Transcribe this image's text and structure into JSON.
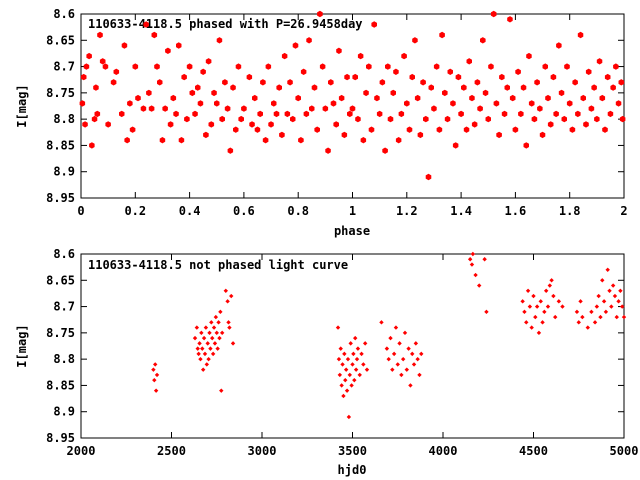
{
  "colors": {
    "points": "#ff0000",
    "axes": "#000000",
    "background": "#ffffff"
  },
  "chart_data": [
    {
      "type": "scatter",
      "title": "110633-4118.5 phased with P=26.9458day",
      "xlabel": "phase",
      "ylabel": "I[mag]",
      "xlim": [
        0,
        2
      ],
      "ylim": [
        8.6,
        8.95
      ],
      "y_reversed": true,
      "grid": false,
      "xticks": [
        "0",
        "0.2",
        "0.4",
        "0.6",
        "0.8",
        "1",
        "1.2",
        "1.4",
        "1.6",
        "1.8",
        "2"
      ],
      "yticks": [
        "8.6",
        "8.65",
        "8.7",
        "8.75",
        "8.8",
        "8.85",
        "8.9",
        "8.95"
      ],
      "marker": "filled-hexagon",
      "points": [
        [
          0.005,
          8.77
        ],
        [
          0.01,
          8.72
        ],
        [
          0.015,
          8.81
        ],
        [
          0.02,
          8.7
        ],
        [
          0.03,
          8.68
        ],
        [
          0.04,
          8.85
        ],
        [
          0.05,
          8.8
        ],
        [
          0.055,
          8.74
        ],
        [
          0.06,
          8.79
        ],
        [
          0.07,
          8.64
        ],
        [
          0.08,
          8.69
        ],
        [
          0.09,
          8.7
        ],
        [
          0.1,
          8.81
        ],
        [
          0.12,
          8.73
        ],
        [
          0.13,
          8.71
        ],
        [
          0.15,
          8.79
        ],
        [
          0.16,
          8.66
        ],
        [
          0.17,
          8.84
        ],
        [
          0.18,
          8.77
        ],
        [
          0.19,
          8.82
        ],
        [
          0.2,
          8.7
        ],
        [
          0.21,
          8.76
        ],
        [
          0.23,
          8.78
        ],
        [
          0.24,
          8.62
        ],
        [
          0.25,
          8.75
        ],
        [
          0.26,
          8.78
        ],
        [
          0.27,
          8.64
        ],
        [
          0.28,
          8.7
        ],
        [
          0.29,
          8.73
        ],
        [
          0.3,
          8.84
        ],
        [
          0.31,
          8.78
        ],
        [
          0.32,
          8.67
        ],
        [
          0.33,
          8.81
        ],
        [
          0.34,
          8.76
        ],
        [
          0.35,
          8.79
        ],
        [
          0.36,
          8.66
        ],
        [
          0.37,
          8.84
        ],
        [
          0.38,
          8.72
        ],
        [
          0.39,
          8.8
        ],
        [
          0.4,
          8.7
        ],
        [
          0.41,
          8.75
        ],
        [
          0.42,
          8.79
        ],
        [
          0.43,
          8.74
        ],
        [
          0.44,
          8.77
        ],
        [
          0.45,
          8.71
        ],
        [
          0.46,
          8.83
        ],
        [
          0.47,
          8.69
        ],
        [
          0.48,
          8.81
        ],
        [
          0.49,
          8.75
        ],
        [
          0.5,
          8.77
        ],
        [
          0.51,
          8.65
        ],
        [
          0.52,
          8.8
        ],
        [
          0.53,
          8.73
        ],
        [
          0.54,
          8.78
        ],
        [
          0.55,
          8.86
        ],
        [
          0.56,
          8.74
        ],
        [
          0.57,
          8.82
        ],
        [
          0.58,
          8.7
        ],
        [
          0.59,
          8.8
        ],
        [
          0.6,
          8.78
        ],
        [
          0.62,
          8.72
        ],
        [
          0.63,
          8.81
        ],
        [
          0.64,
          8.76
        ],
        [
          0.65,
          8.82
        ],
        [
          0.66,
          8.79
        ],
        [
          0.67,
          8.73
        ],
        [
          0.68,
          8.84
        ],
        [
          0.69,
          8.7
        ],
        [
          0.7,
          8.81
        ],
        [
          0.71,
          8.77
        ],
        [
          0.72,
          8.79
        ],
        [
          0.73,
          8.74
        ],
        [
          0.74,
          8.83
        ],
        [
          0.75,
          8.68
        ],
        [
          0.76,
          8.79
        ],
        [
          0.77,
          8.73
        ],
        [
          0.78,
          8.8
        ],
        [
          0.79,
          8.66
        ],
        [
          0.8,
          8.76
        ],
        [
          0.81,
          8.84
        ],
        [
          0.82,
          8.71
        ],
        [
          0.83,
          8.79
        ],
        [
          0.84,
          8.65
        ],
        [
          0.85,
          8.78
        ],
        [
          0.86,
          8.74
        ],
        [
          0.87,
          8.82
        ],
        [
          0.88,
          8.6
        ],
        [
          0.89,
          8.7
        ],
        [
          0.9,
          8.78
        ],
        [
          0.91,
          8.86
        ],
        [
          0.92,
          8.73
        ],
        [
          0.93,
          8.77
        ],
        [
          0.94,
          8.81
        ],
        [
          0.95,
          8.67
        ],
        [
          0.96,
          8.76
        ],
        [
          0.97,
          8.83
        ],
        [
          0.98,
          8.72
        ],
        [
          0.99,
          8.79
        ],
        [
          1.0,
          8.78
        ],
        [
          1.01,
          8.72
        ],
        [
          1.02,
          8.8
        ],
        [
          1.03,
          8.68
        ],
        [
          1.04,
          8.84
        ],
        [
          1.05,
          8.75
        ],
        [
          1.06,
          8.7
        ],
        [
          1.07,
          8.82
        ],
        [
          1.08,
          8.62
        ],
        [
          1.09,
          8.76
        ],
        [
          1.1,
          8.79
        ],
        [
          1.11,
          8.73
        ],
        [
          1.12,
          8.86
        ],
        [
          1.13,
          8.7
        ],
        [
          1.14,
          8.8
        ],
        [
          1.15,
          8.75
        ],
        [
          1.16,
          8.71
        ],
        [
          1.17,
          8.84
        ],
        [
          1.18,
          8.79
        ],
        [
          1.19,
          8.68
        ],
        [
          1.2,
          8.77
        ],
        [
          1.21,
          8.82
        ],
        [
          1.22,
          8.72
        ],
        [
          1.23,
          8.65
        ],
        [
          1.24,
          8.76
        ],
        [
          1.25,
          8.83
        ],
        [
          1.26,
          8.73
        ],
        [
          1.27,
          8.8
        ],
        [
          1.28,
          8.91
        ],
        [
          1.29,
          8.74
        ],
        [
          1.3,
          8.78
        ],
        [
          1.31,
          8.7
        ],
        [
          1.32,
          8.82
        ],
        [
          1.33,
          8.64
        ],
        [
          1.34,
          8.75
        ],
        [
          1.35,
          8.8
        ],
        [
          1.36,
          8.71
        ],
        [
          1.37,
          8.77
        ],
        [
          1.38,
          8.85
        ],
        [
          1.39,
          8.72
        ],
        [
          1.4,
          8.79
        ],
        [
          1.41,
          8.74
        ],
        [
          1.42,
          8.82
        ],
        [
          1.43,
          8.69
        ],
        [
          1.44,
          8.76
        ],
        [
          1.45,
          8.81
        ],
        [
          1.46,
          8.73
        ],
        [
          1.47,
          8.78
        ],
        [
          1.48,
          8.65
        ],
        [
          1.49,
          8.75
        ],
        [
          1.5,
          8.8
        ],
        [
          1.51,
          8.7
        ],
        [
          1.52,
          8.6
        ],
        [
          1.53,
          8.77
        ],
        [
          1.54,
          8.83
        ],
        [
          1.55,
          8.72
        ],
        [
          1.56,
          8.79
        ],
        [
          1.57,
          8.74
        ],
        [
          1.58,
          8.61
        ],
        [
          1.59,
          8.76
        ],
        [
          1.6,
          8.82
        ],
        [
          1.61,
          8.71
        ],
        [
          1.62,
          8.79
        ],
        [
          1.63,
          8.74
        ],
        [
          1.64,
          8.85
        ],
        [
          1.65,
          8.68
        ],
        [
          1.66,
          8.77
        ],
        [
          1.67,
          8.8
        ],
        [
          1.68,
          8.73
        ],
        [
          1.69,
          8.78
        ],
        [
          1.7,
          8.83
        ],
        [
          1.71,
          8.7
        ],
        [
          1.72,
          8.76
        ],
        [
          1.73,
          8.81
        ],
        [
          1.74,
          8.72
        ],
        [
          1.75,
          8.79
        ],
        [
          1.76,
          8.66
        ],
        [
          1.77,
          8.75
        ],
        [
          1.78,
          8.8
        ],
        [
          1.79,
          8.7
        ],
        [
          1.8,
          8.77
        ],
        [
          1.81,
          8.82
        ],
        [
          1.82,
          8.73
        ],
        [
          1.83,
          8.79
        ],
        [
          1.84,
          8.64
        ],
        [
          1.85,
          8.76
        ],
        [
          1.86,
          8.81
        ],
        [
          1.87,
          8.71
        ],
        [
          1.88,
          8.78
        ],
        [
          1.89,
          8.74
        ],
        [
          1.9,
          8.8
        ],
        [
          1.91,
          8.69
        ],
        [
          1.92,
          8.76
        ],
        [
          1.93,
          8.82
        ],
        [
          1.94,
          8.72
        ],
        [
          1.95,
          8.79
        ],
        [
          1.96,
          8.74
        ],
        [
          1.97,
          8.7
        ],
        [
          1.98,
          8.77
        ],
        [
          1.99,
          8.73
        ],
        [
          1.995,
          8.8
        ]
      ]
    },
    {
      "type": "scatter",
      "title": "110633-4118.5 not phased light curve",
      "xlabel": "hjd0",
      "ylabel": "I[mag]",
      "xlim": [
        2000,
        5000
      ],
      "ylim": [
        8.6,
        8.95
      ],
      "y_reversed": true,
      "grid": false,
      "xticks": [
        "2000",
        "2500",
        "3000",
        "3500",
        "4000",
        "4500",
        "5000"
      ],
      "yticks": [
        "8.6",
        "8.65",
        "8.7",
        "8.75",
        "8.8",
        "8.85",
        "8.9",
        "8.95"
      ],
      "marker": "small-diamond",
      "points": [
        [
          2400,
          8.82
        ],
        [
          2405,
          8.84
        ],
        [
          2410,
          8.81
        ],
        [
          2415,
          8.86
        ],
        [
          2420,
          8.83
        ],
        [
          2630,
          8.76
        ],
        [
          2640,
          8.74
        ],
        [
          2645,
          8.78
        ],
        [
          2650,
          8.79
        ],
        [
          2655,
          8.77
        ],
        [
          2660,
          8.8
        ],
        [
          2665,
          8.75
        ],
        [
          2670,
          8.78
        ],
        [
          2675,
          8.82
        ],
        [
          2680,
          8.76
        ],
        [
          2685,
          8.79
        ],
        [
          2690,
          8.74
        ],
        [
          2695,
          8.81
        ],
        [
          2700,
          8.77
        ],
        [
          2705,
          8.8
        ],
        [
          2710,
          8.75
        ],
        [
          2715,
          8.78
        ],
        [
          2720,
          8.73
        ],
        [
          2725,
          8.76
        ],
        [
          2730,
          8.79
        ],
        [
          2735,
          8.74
        ],
        [
          2740,
          8.77
        ],
        [
          2745,
          8.72
        ],
        [
          2750,
          8.75
        ],
        [
          2755,
          8.78
        ],
        [
          2760,
          8.73
        ],
        [
          2765,
          8.76
        ],
        [
          2770,
          8.71
        ],
        [
          2775,
          8.86
        ],
        [
          2780,
          8.75
        ],
        [
          2800,
          8.67
        ],
        [
          2810,
          8.69
        ],
        [
          2815,
          8.73
        ],
        [
          2820,
          8.74
        ],
        [
          2830,
          8.68
        ],
        [
          2840,
          8.77
        ],
        [
          3420,
          8.74
        ],
        [
          3425,
          8.8
        ],
        [
          3430,
          8.83
        ],
        [
          3435,
          8.78
        ],
        [
          3440,
          8.85
        ],
        [
          3445,
          8.81
        ],
        [
          3450,
          8.87
        ],
        [
          3455,
          8.79
        ],
        [
          3460,
          8.84
        ],
        [
          3465,
          8.82
        ],
        [
          3470,
          8.86
        ],
        [
          3475,
          8.8
        ],
        [
          3480,
          8.91
        ],
        [
          3485,
          8.83
        ],
        [
          3490,
          8.77
        ],
        [
          3495,
          8.85
        ],
        [
          3500,
          8.81
        ],
        [
          3505,
          8.79
        ],
        [
          3510,
          8.84
        ],
        [
          3515,
          8.76
        ],
        [
          3520,
          8.82
        ],
        [
          3525,
          8.8
        ],
        [
          3530,
          8.78
        ],
        [
          3540,
          8.83
        ],
        [
          3550,
          8.79
        ],
        [
          3560,
          8.81
        ],
        [
          3570,
          8.77
        ],
        [
          3580,
          8.82
        ],
        [
          3660,
          8.73
        ],
        [
          3690,
          8.78
        ],
        [
          3700,
          8.8
        ],
        [
          3710,
          8.76
        ],
        [
          3720,
          8.82
        ],
        [
          3730,
          8.79
        ],
        [
          3740,
          8.74
        ],
        [
          3750,
          8.81
        ],
        [
          3760,
          8.77
        ],
        [
          3770,
          8.83
        ],
        [
          3780,
          8.8
        ],
        [
          3790,
          8.75
        ],
        [
          3800,
          8.82
        ],
        [
          3810,
          8.78
        ],
        [
          3820,
          8.85
        ],
        [
          3830,
          8.79
        ],
        [
          3840,
          8.81
        ],
        [
          3850,
          8.77
        ],
        [
          3860,
          8.8
        ],
        [
          3870,
          8.83
        ],
        [
          3880,
          8.79
        ],
        [
          4150,
          8.61
        ],
        [
          4160,
          8.62
        ],
        [
          4165,
          8.6
        ],
        [
          4180,
          8.64
        ],
        [
          4200,
          8.66
        ],
        [
          4230,
          8.61
        ],
        [
          4240,
          8.71
        ],
        [
          4440,
          8.69
        ],
        [
          4450,
          8.71
        ],
        [
          4460,
          8.73
        ],
        [
          4470,
          8.67
        ],
        [
          4480,
          8.7
        ],
        [
          4490,
          8.74
        ],
        [
          4500,
          8.68
        ],
        [
          4510,
          8.72
        ],
        [
          4520,
          8.7
        ],
        [
          4530,
          8.75
        ],
        [
          4540,
          8.69
        ],
        [
          4550,
          8.73
        ],
        [
          4560,
          8.71
        ],
        [
          4570,
          8.67
        ],
        [
          4580,
          8.7
        ],
        [
          4590,
          8.66
        ],
        [
          4600,
          8.65
        ],
        [
          4610,
          8.68
        ],
        [
          4620,
          8.72
        ],
        [
          4640,
          8.69
        ],
        [
          4660,
          8.7
        ],
        [
          4740,
          8.71
        ],
        [
          4750,
          8.73
        ],
        [
          4760,
          8.69
        ],
        [
          4770,
          8.72
        ],
        [
          4800,
          8.74
        ],
        [
          4820,
          8.71
        ],
        [
          4840,
          8.73
        ],
        [
          4850,
          8.7
        ],
        [
          4860,
          8.68
        ],
        [
          4870,
          8.72
        ],
        [
          4880,
          8.65
        ],
        [
          4890,
          8.69
        ],
        [
          4900,
          8.71
        ],
        [
          4910,
          8.63
        ],
        [
          4920,
          8.67
        ],
        [
          4930,
          8.7
        ],
        [
          4940,
          8.66
        ],
        [
          4950,
          8.68
        ],
        [
          4960,
          8.72
        ],
        [
          4970,
          8.69
        ],
        [
          4980,
          8.67
        ],
        [
          4990,
          8.7
        ],
        [
          5000,
          8.72
        ]
      ]
    }
  ]
}
